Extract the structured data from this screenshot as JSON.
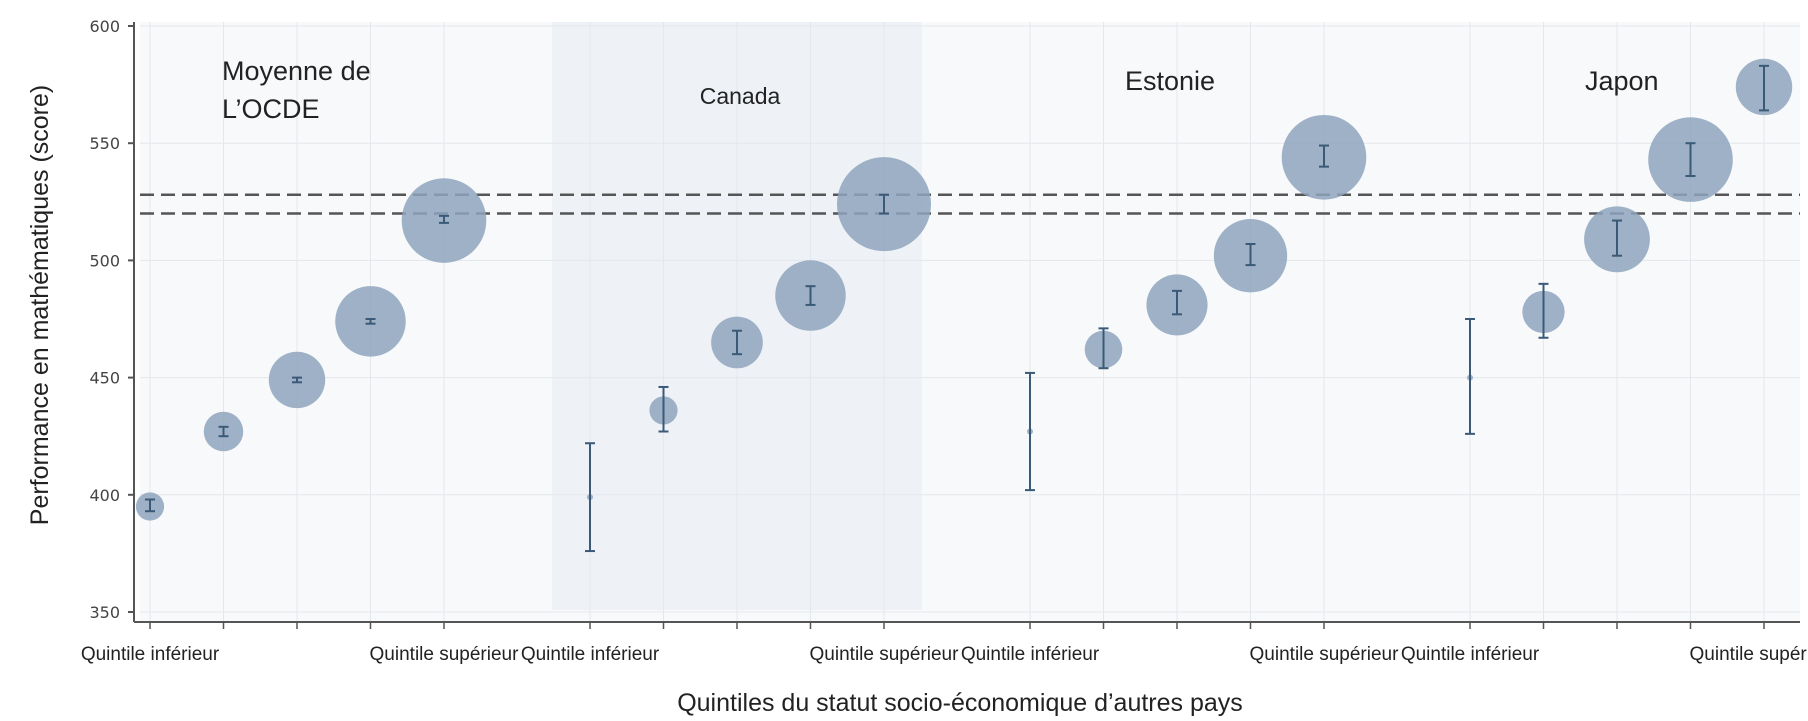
{
  "chart_data": {
    "type": "scatter",
    "xlabel": "Quintiles du statut socio-économique d’autres pays",
    "ylabel": "Performance en mathématiques (score)",
    "ylim": [
      350,
      600
    ],
    "yticks": [
      350,
      400,
      450,
      500,
      550,
      600
    ],
    "grid": true,
    "reference_lines": [
      520,
      528
    ],
    "groups": [
      {
        "name_lines": [
          "Moyenne de",
          "L’OCDE"
        ],
        "highlighted": false,
        "tick_labels": [
          "Quintile inférieur",
          "",
          "",
          "",
          "Quintile supérieur"
        ],
        "points": [
          {
            "quintile": 1,
            "score": 395,
            "ci": [
              393,
              398
            ],
            "size": 0.3
          },
          {
            "quintile": 2,
            "score": 427,
            "ci": [
              425,
              429
            ],
            "size": 0.42
          },
          {
            "quintile": 3,
            "score": 449,
            "ci": [
              448,
              450
            ],
            "size": 0.6
          },
          {
            "quintile": 4,
            "score": 474,
            "ci": [
              473,
              475
            ],
            "size": 0.75
          },
          {
            "quintile": 5,
            "score": 517,
            "ci": [
              516,
              519
            ],
            "size": 0.9
          }
        ]
      },
      {
        "name_lines": [
          "Canada"
        ],
        "highlighted": true,
        "tick_labels": [
          "Quintile inférieur",
          "",
          "",
          "",
          "Quintile supérieur"
        ],
        "points": [
          {
            "quintile": 1,
            "score": 399,
            "ci": [
              376,
              422
            ],
            "size": 0.05
          },
          {
            "quintile": 2,
            "score": 436,
            "ci": [
              427,
              446
            ],
            "size": 0.3
          },
          {
            "quintile": 3,
            "score": 465,
            "ci": [
              460,
              470
            ],
            "size": 0.55
          },
          {
            "quintile": 4,
            "score": 485,
            "ci": [
              481,
              489
            ],
            "size": 0.75
          },
          {
            "quintile": 5,
            "score": 524,
            "ci": [
              520,
              528
            ],
            "size": 1.0
          }
        ]
      },
      {
        "name_lines": [
          "Estonie"
        ],
        "highlighted": false,
        "tick_labels": [
          "Quintile inférieur",
          "",
          "",
          "",
          "Quintile supérieur"
        ],
        "points": [
          {
            "quintile": 1,
            "score": 427,
            "ci": [
              402,
              452
            ],
            "size": 0.05
          },
          {
            "quintile": 2,
            "score": 462,
            "ci": [
              454,
              471
            ],
            "size": 0.4
          },
          {
            "quintile": 3,
            "score": 481,
            "ci": [
              477,
              487
            ],
            "size": 0.65
          },
          {
            "quintile": 4,
            "score": 502,
            "ci": [
              498,
              507
            ],
            "size": 0.78
          },
          {
            "quintile": 5,
            "score": 544,
            "ci": [
              540,
              549
            ],
            "size": 0.9
          }
        ]
      },
      {
        "name_lines": [
          "Japon"
        ],
        "highlighted": false,
        "tick_labels": [
          "Quintile inférieur",
          "",
          "",
          "",
          "Quintile supérieur"
        ],
        "points": [
          {
            "quintile": 1,
            "score": 450,
            "ci": [
              426,
              475
            ],
            "size": 0.05
          },
          {
            "quintile": 2,
            "score": 478,
            "ci": [
              467,
              490
            ],
            "size": 0.45
          },
          {
            "quintile": 3,
            "score": 509,
            "ci": [
              502,
              517
            ],
            "size": 0.7
          },
          {
            "quintile": 4,
            "score": 543,
            "ci": [
              536,
              550
            ],
            "size": 0.9
          },
          {
            "quintile": 5,
            "score": 574,
            "ci": [
              564,
              583
            ],
            "size": 0.6
          }
        ]
      }
    ]
  },
  "colors": {
    "bubble": "#8ea5bd",
    "error_bar": "#3a5a78",
    "highlight_band": "#eef2f7",
    "plot_background": "#f8f9fb",
    "grid": "#e4e7eb",
    "axis": "#555555",
    "reference_line": "#555555"
  }
}
